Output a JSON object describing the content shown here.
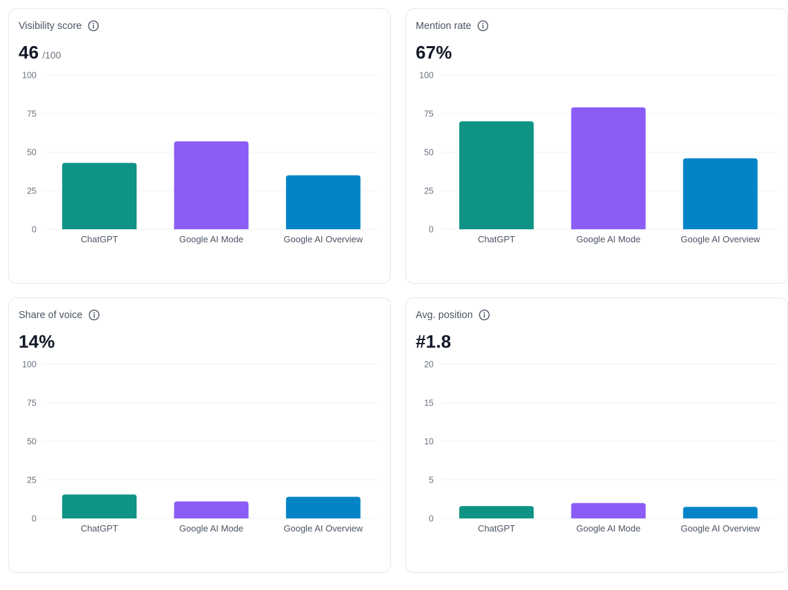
{
  "cards": [
    {
      "title": "Visibility score",
      "value": "46",
      "suffix": "/100"
    },
    {
      "title": "Mention rate",
      "value": "67%",
      "suffix": ""
    },
    {
      "title": "Share of voice",
      "value": "14%",
      "suffix": ""
    },
    {
      "title": "Avg. position",
      "value": "#1.8",
      "suffix": ""
    }
  ],
  "chart_data": [
    {
      "type": "bar",
      "title": "Visibility score",
      "categories": [
        "ChatGPT",
        "Google AI Mode",
        "Google AI Overview"
      ],
      "values": [
        43,
        57,
        35
      ],
      "colors": [
        "#0e9384",
        "#8b5cf6",
        "#0284c7"
      ],
      "ylim": [
        0,
        100
      ],
      "yticks": [
        0,
        25,
        50,
        75,
        100
      ],
      "grid": true,
      "xlabel": "",
      "ylabel": ""
    },
    {
      "type": "bar",
      "title": "Mention rate",
      "categories": [
        "ChatGPT",
        "Google AI Mode",
        "Google AI Overview"
      ],
      "values": [
        70,
        79,
        46
      ],
      "colors": [
        "#0e9384",
        "#8b5cf6",
        "#0284c7"
      ],
      "ylim": [
        0,
        100
      ],
      "yticks": [
        0,
        25,
        50,
        75,
        100
      ],
      "grid": true,
      "xlabel": "",
      "ylabel": ""
    },
    {
      "type": "bar",
      "title": "Share of voice",
      "categories": [
        "ChatGPT",
        "Google AI Mode",
        "Google AI Overview"
      ],
      "values": [
        15.5,
        11,
        14
      ],
      "colors": [
        "#0e9384",
        "#8b5cf6",
        "#0284c7"
      ],
      "ylim": [
        0,
        100
      ],
      "yticks": [
        0,
        25,
        50,
        75,
        100
      ],
      "grid": true,
      "xlabel": "",
      "ylabel": ""
    },
    {
      "type": "bar",
      "title": "Avg. position",
      "categories": [
        "ChatGPT",
        "Google AI Mode",
        "Google AI Overview"
      ],
      "values": [
        1.6,
        2.0,
        1.5
      ],
      "colors": [
        "#0e9384",
        "#8b5cf6",
        "#0284c7"
      ],
      "ylim": [
        0,
        20
      ],
      "yticks": [
        0,
        5,
        10,
        15,
        20
      ],
      "grid": true,
      "xlabel": "",
      "ylabel": ""
    }
  ]
}
